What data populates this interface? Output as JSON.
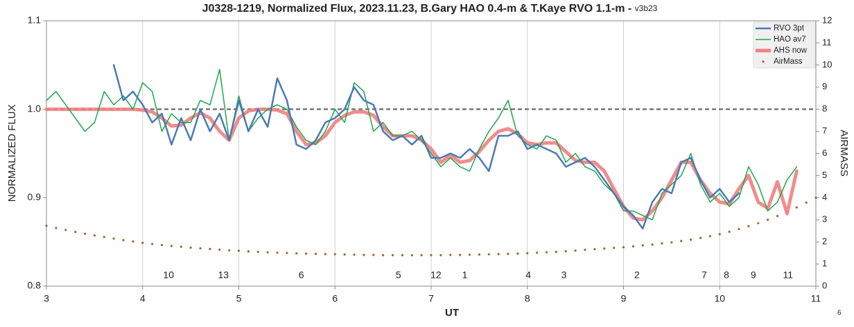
{
  "chart_data": {
    "type": "line",
    "title": "J0328-1219, Normalized Flux, 2023.11.23, B.Gary HAO 0.4-m & T.Kaye RVO 1.1-m - ",
    "subtitle": "v3b23",
    "x_label": "UT",
    "y_label": "NORMALIZED FLUX",
    "y2_label": "AIRMASS",
    "page_number": "6",
    "xlim": [
      3,
      11
    ],
    "xticks": [
      3,
      4,
      5,
      6,
      7,
      8,
      9,
      10,
      11
    ],
    "ylim": [
      0.8,
      1.1
    ],
    "yticks": [
      0.8,
      0.9,
      {
        "value": 1,
        "label": "1.0"
      },
      1.1
    ],
    "y2lim": [
      0,
      12
    ],
    "y2ticks": [
      0,
      1,
      2,
      3,
      4,
      5,
      6,
      7,
      8,
      9,
      10,
      11,
      12
    ],
    "grid": "x",
    "reference_line": 1,
    "legend": "upper right",
    "annotations": [
      {
        "text": "10",
        "x": 4.27,
        "y": 0.812
      },
      {
        "text": "13",
        "x": 4.84,
        "y": 0.812
      },
      {
        "text": "6",
        "x": 5.65,
        "y": 0.812
      },
      {
        "text": "5",
        "x": 6.66,
        "y": 0.812
      },
      {
        "text": "12",
        "x": 7.05,
        "y": 0.812
      },
      {
        "text": "1",
        "x": 7.35,
        "y": 0.812
      },
      {
        "text": "4",
        "x": 8.01,
        "y": 0.812
      },
      {
        "text": "3",
        "x": 8.38,
        "y": 0.812
      },
      {
        "text": "2",
        "x": 9.14,
        "y": 0.812
      },
      {
        "text": "7",
        "x": 9.84,
        "y": 0.812
      },
      {
        "text": "8",
        "x": 10.07,
        "y": 0.812
      },
      {
        "text": "9",
        "x": 10.35,
        "y": 0.812
      },
      {
        "text": "11",
        "x": 10.71,
        "y": 0.812
      }
    ],
    "series": [
      {
        "name": "RVO 3pt",
        "color": "#4a7ab5",
        "line_width": 2.5,
        "x": [
          3.7,
          3.8,
          3.9,
          4.0,
          4.1,
          4.2,
          4.3,
          4.4,
          4.5,
          4.6,
          4.7,
          4.8,
          4.9,
          5.0,
          5.1,
          5.2,
          5.3,
          5.4,
          5.5,
          5.6,
          5.7,
          5.8,
          5.9,
          6.0,
          6.1,
          6.2,
          6.3,
          6.4,
          6.5,
          6.6,
          6.7,
          6.8,
          6.9,
          7.0,
          7.1,
          7.2,
          7.3,
          7.4,
          7.5,
          7.6,
          7.7,
          7.8,
          7.9,
          8.0,
          8.1,
          8.2,
          8.3,
          8.4,
          8.5,
          8.6,
          8.7,
          8.8,
          8.9,
          9.0,
          9.1,
          9.2,
          9.3,
          9.4,
          9.5,
          9.6,
          9.7,
          9.8,
          9.9,
          10.0,
          10.1,
          10.2
        ],
        "values": [
          1.05,
          1.01,
          1.02,
          1.005,
          0.985,
          0.995,
          0.96,
          0.99,
          0.965,
          1.0,
          0.975,
          0.995,
          0.965,
          1.01,
          0.975,
          1.0,
          0.98,
          1.035,
          1.01,
          0.96,
          0.955,
          0.965,
          0.985,
          0.99,
          1.0,
          1.025,
          1.01,
          1.005,
          0.975,
          0.965,
          0.97,
          0.96,
          0.97,
          0.945,
          0.945,
          0.95,
          0.945,
          0.955,
          0.945,
          0.93,
          0.97,
          0.97,
          0.975,
          0.955,
          0.96,
          0.955,
          0.95,
          0.935,
          0.94,
          0.945,
          0.935,
          0.92,
          0.905,
          0.89,
          0.88,
          0.865,
          0.895,
          0.91,
          0.905,
          0.94,
          0.945,
          0.92,
          0.9,
          0.91,
          0.895,
          0.905
        ]
      },
      {
        "name": "HAO av7",
        "color": "#1aa84a",
        "line_width": 1.5,
        "x": [
          3.0,
          3.1,
          3.2,
          3.3,
          3.4,
          3.5,
          3.6,
          3.7,
          3.8,
          3.9,
          4.0,
          4.1,
          4.2,
          4.3,
          4.4,
          4.5,
          4.6,
          4.7,
          4.8,
          4.9,
          5.0,
          5.1,
          5.2,
          5.3,
          5.4,
          5.5,
          5.6,
          5.7,
          5.8,
          5.9,
          6.0,
          6.1,
          6.2,
          6.3,
          6.4,
          6.5,
          6.6,
          6.7,
          6.8,
          6.9,
          7.0,
          7.1,
          7.2,
          7.3,
          7.4,
          7.5,
          7.6,
          7.7,
          7.8,
          7.9,
          8.0,
          8.1,
          8.2,
          8.3,
          8.4,
          8.5,
          8.6,
          8.7,
          8.8,
          8.9,
          9.0,
          9.1,
          9.2,
          9.3,
          9.4,
          9.5,
          9.6,
          9.7,
          9.8,
          9.9,
          10.0,
          10.1,
          10.2,
          10.3,
          10.4,
          10.5,
          10.6,
          10.7,
          10.8
        ],
        "values": [
          1.01,
          1.02,
          1.005,
          0.99,
          0.975,
          0.985,
          1.02,
          1.005,
          1.015,
          1.0,
          1.03,
          1.02,
          0.975,
          0.995,
          0.985,
          0.985,
          1.01,
          1.005,
          1.045,
          0.965,
          1.015,
          0.975,
          0.99,
          1.0,
          1.005,
          1.0,
          0.98,
          0.965,
          0.96,
          0.975,
          1.0,
          0.985,
          1.03,
          1.02,
          0.975,
          0.985,
          0.97,
          0.97,
          0.975,
          0.965,
          0.95,
          0.935,
          0.945,
          0.935,
          0.93,
          0.955,
          0.975,
          0.99,
          1.01,
          0.97,
          0.96,
          0.955,
          0.97,
          0.965,
          0.94,
          0.95,
          0.935,
          0.93,
          0.915,
          0.905,
          0.885,
          0.885,
          0.88,
          0.875,
          0.905,
          0.915,
          0.925,
          0.95,
          0.915,
          0.895,
          0.905,
          0.89,
          0.9,
          0.935,
          0.915,
          0.885,
          0.895,
          0.92,
          0.935
        ]
      },
      {
        "name": "AHS now",
        "color": "#f08080",
        "line_width": 5,
        "x": [
          3.0,
          3.1,
          3.2,
          3.3,
          3.4,
          3.5,
          3.6,
          3.7,
          3.8,
          3.9,
          4.0,
          4.1,
          4.2,
          4.3,
          4.4,
          4.5,
          4.6,
          4.7,
          4.8,
          4.9,
          5.0,
          5.1,
          5.2,
          5.3,
          5.4,
          5.5,
          5.6,
          5.7,
          5.8,
          5.9,
          6.0,
          6.1,
          6.2,
          6.3,
          6.4,
          6.5,
          6.6,
          6.7,
          6.8,
          6.9,
          7.0,
          7.1,
          7.2,
          7.3,
          7.4,
          7.5,
          7.6,
          7.7,
          7.8,
          7.9,
          8.0,
          8.1,
          8.2,
          8.3,
          8.4,
          8.5,
          8.6,
          8.7,
          8.8,
          8.9,
          9.0,
          9.1,
          9.2,
          9.3,
          9.4,
          9.5,
          9.6,
          9.7,
          9.8,
          9.9,
          10.0,
          10.1,
          10.2,
          10.3,
          10.4,
          10.5,
          10.6,
          10.7,
          10.8
        ],
        "values": [
          1.0,
          1.0,
          1.0,
          1.0,
          1.0,
          1.0,
          1.0,
          1.0,
          1.0,
          1.0,
          0.999,
          0.997,
          0.99,
          0.981,
          0.982,
          0.99,
          0.996,
          0.99,
          0.975,
          0.965,
          0.99,
          0.998,
          1.0,
          1.0,
          0.999,
          0.995,
          0.975,
          0.96,
          0.962,
          0.97,
          0.985,
          0.993,
          0.997,
          0.997,
          0.993,
          0.98,
          0.97,
          0.97,
          0.97,
          0.965,
          0.955,
          0.94,
          0.948,
          0.94,
          0.942,
          0.952,
          0.965,
          0.975,
          0.978,
          0.972,
          0.962,
          0.96,
          0.962,
          0.962,
          0.952,
          0.942,
          0.94,
          0.94,
          0.93,
          0.91,
          0.89,
          0.877,
          0.875,
          0.885,
          0.9,
          0.92,
          0.94,
          0.94,
          0.92,
          0.905,
          0.895,
          0.893,
          0.91,
          0.925,
          0.895,
          0.888,
          0.918,
          0.882,
          0.93
        ]
      },
      {
        "name": "AirMass",
        "color": "#a0622a",
        "axis": "y2",
        "marker": "dot",
        "x": [
          3.0,
          3.1,
          3.2,
          3.3,
          3.4,
          3.5,
          3.6,
          3.7,
          3.8,
          3.9,
          4.0,
          4.1,
          4.2,
          4.3,
          4.4,
          4.5,
          4.6,
          4.7,
          4.8,
          4.9,
          5.0,
          5.1,
          5.2,
          5.3,
          5.4,
          5.5,
          5.6,
          5.7,
          5.8,
          5.9,
          6.0,
          6.1,
          6.2,
          6.3,
          6.4,
          6.5,
          6.6,
          6.7,
          6.8,
          6.9,
          7.0,
          7.1,
          7.2,
          7.3,
          7.4,
          7.5,
          7.6,
          7.7,
          7.8,
          7.9,
          8.0,
          8.1,
          8.2,
          8.3,
          8.4,
          8.5,
          8.6,
          8.7,
          8.8,
          8.9,
          9.0,
          9.1,
          9.2,
          9.3,
          9.4,
          9.5,
          9.6,
          9.7,
          9.8,
          9.9,
          10.0,
          10.1,
          10.2,
          10.3,
          10.4,
          10.5,
          10.6,
          10.7,
          10.8,
          10.9,
          11.0
        ],
        "values": [
          2.73,
          2.63,
          2.54,
          2.45,
          2.37,
          2.29,
          2.22,
          2.15,
          2.08,
          2.02,
          1.96,
          1.91,
          1.86,
          1.82,
          1.78,
          1.74,
          1.71,
          1.68,
          1.65,
          1.62,
          1.6,
          1.57,
          1.55,
          1.53,
          1.51,
          1.5,
          1.48,
          1.47,
          1.46,
          1.45,
          1.44,
          1.43,
          1.42,
          1.41,
          1.41,
          1.4,
          1.4,
          1.4,
          1.4,
          1.4,
          1.4,
          1.4,
          1.41,
          1.41,
          1.42,
          1.43,
          1.44,
          1.45,
          1.46,
          1.47,
          1.49,
          1.51,
          1.53,
          1.55,
          1.58,
          1.61,
          1.64,
          1.67,
          1.7,
          1.73,
          1.76,
          1.8,
          1.84,
          1.88,
          1.93,
          1.98,
          2.04,
          2.1,
          2.18,
          2.26,
          2.35,
          2.46,
          2.58,
          2.71,
          2.85,
          3.0,
          3.17,
          3.36,
          3.56,
          3.78,
          4.0
        ]
      }
    ]
  }
}
